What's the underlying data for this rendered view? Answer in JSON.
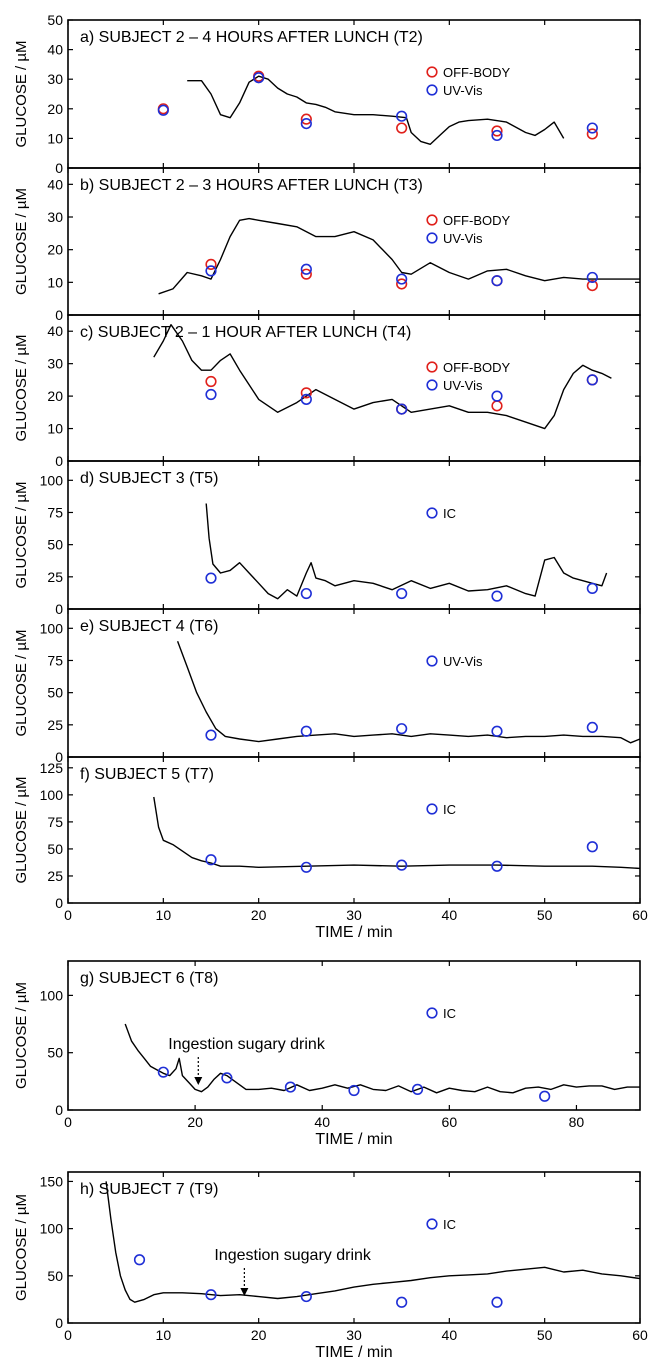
{
  "chart_data": [
    {
      "type": "scatter",
      "title": "a) SUBJECT 2 – 4 HOURS AFTER LUNCH (T2)",
      "ylabel": "GLUCOSE / µM",
      "xlim": [
        0,
        60
      ],
      "ylim": [
        0,
        50
      ],
      "yticks": [
        "0",
        "10",
        "20",
        "30",
        "40",
        "50"
      ],
      "legend": [
        "OFF-BODY",
        "UV-Vis"
      ],
      "legend_position": "top-right",
      "series": [
        {
          "name": "OFF-BODY",
          "marker": "circle",
          "color": "#e0201b",
          "x": [
            10,
            20,
            25,
            35,
            45,
            55
          ],
          "y": [
            20,
            31,
            16.5,
            13.5,
            12.5,
            11.5
          ]
        },
        {
          "name": "UV-Vis",
          "marker": "circle",
          "color": "#1f2fd6",
          "x": [
            10,
            20,
            25,
            35,
            45,
            55
          ],
          "y": [
            19.5,
            30.5,
            15,
            17.5,
            11,
            13.5
          ]
        },
        {
          "kind": "line",
          "x": [
            12.5,
            14,
            15,
            16,
            17,
            18,
            19,
            20,
            21,
            22,
            23,
            24,
            25,
            26,
            27,
            28,
            30,
            32,
            34,
            35.5,
            36,
            37,
            38,
            39,
            40,
            41,
            42,
            44,
            46,
            48,
            49,
            50,
            51,
            52
          ],
          "y": [
            29.5,
            29.5,
            25,
            18,
            17,
            22,
            29,
            31,
            30,
            27,
            25,
            24,
            22,
            21.5,
            20.5,
            19,
            18,
            18,
            17.5,
            17,
            12,
            9,
            8,
            11,
            14,
            15.5,
            16,
            16.5,
            15.5,
            12,
            11,
            13,
            15.5,
            10
          ]
        }
      ]
    },
    {
      "type": "scatter",
      "title": "b) SUBJECT 2 – 3 HOURS AFTER LUNCH (T3)",
      "ylabel": "GLUCOSE / µM",
      "xlim": [
        0,
        60
      ],
      "ylim": [
        0,
        45
      ],
      "yticks": [
        "0",
        "10",
        "20",
        "30",
        "40"
      ],
      "legend": [
        "OFF-BODY",
        "UV-Vis"
      ],
      "legend_position": "top-right",
      "series": [
        {
          "name": "OFF-BODY",
          "marker": "circle",
          "color": "#e0201b",
          "x": [
            15,
            25,
            35,
            45,
            55
          ],
          "y": [
            15.5,
            12.5,
            9.5,
            10.5,
            9
          ]
        },
        {
          "name": "UV-Vis",
          "marker": "circle",
          "color": "#1f2fd6",
          "x": [
            15,
            25,
            35,
            45,
            55
          ],
          "y": [
            13.5,
            14,
            11,
            10.5,
            11.5
          ]
        },
        {
          "kind": "line",
          "x": [
            9.5,
            11,
            12.5,
            14,
            15,
            16,
            17,
            18,
            19,
            20,
            22,
            24,
            26,
            28,
            30,
            32,
            34,
            35,
            36,
            38,
            40,
            42,
            44,
            46,
            48,
            50,
            52,
            54,
            56,
            58,
            60
          ],
          "y": [
            6.5,
            8,
            13,
            12,
            11,
            17,
            24,
            29,
            29.5,
            29,
            28,
            27,
            24,
            24,
            25.5,
            23,
            17,
            13,
            12.5,
            16,
            13,
            11,
            13.5,
            14,
            12,
            10.5,
            11.5,
            11,
            11,
            11,
            11
          ]
        }
      ]
    },
    {
      "type": "scatter",
      "title": "c) SUBJECT 2 – 1 HOUR AFTER LUNCH (T4)",
      "ylabel": "GLUCOSE / µM",
      "xlim": [
        0,
        60
      ],
      "ylim": [
        0,
        45
      ],
      "yticks": [
        "0",
        "10",
        "20",
        "30",
        "40"
      ],
      "legend": [
        "OFF-BODY",
        "UV-Vis"
      ],
      "legend_position": "top-right",
      "series": [
        {
          "name": "OFF-BODY",
          "marker": "circle",
          "color": "#e0201b",
          "x": [
            15,
            25,
            35,
            45,
            55
          ],
          "y": [
            24.5,
            21,
            16,
            17,
            25
          ]
        },
        {
          "name": "UV-Vis",
          "marker": "circle",
          "color": "#1f2fd6",
          "x": [
            15,
            25,
            35,
            45,
            55
          ],
          "y": [
            20.5,
            19,
            16,
            20,
            25
          ]
        },
        {
          "kind": "line",
          "x": [
            9,
            10,
            10.8,
            12,
            13,
            14,
            15,
            16,
            17,
            18,
            20,
            22,
            24,
            26,
            28,
            30,
            32,
            34,
            36,
            38,
            40,
            42,
            44,
            46,
            48,
            50,
            51,
            52,
            53,
            54,
            55,
            56,
            57
          ],
          "y": [
            32,
            37,
            42,
            37,
            31,
            28,
            28,
            31,
            33,
            28,
            19,
            15,
            18,
            22,
            19,
            16,
            18,
            19,
            15,
            16,
            17,
            15,
            15,
            14,
            12,
            10,
            14,
            22,
            27,
            29.5,
            28,
            27,
            25.5
          ]
        }
      ]
    },
    {
      "type": "scatter",
      "title": "d) SUBJECT 3 (T5)",
      "ylabel": "GLUCOSE / µM",
      "xlim": [
        0,
        60
      ],
      "ylim": [
        0,
        115
      ],
      "yticks": [
        "0",
        "25",
        "50",
        "75",
        "100"
      ],
      "legend": [
        "IC"
      ],
      "legend_position": "top-right",
      "series": [
        {
          "name": "IC",
          "marker": "circle",
          "color": "#1f2fd6",
          "x": [
            15,
            25,
            35,
            45,
            55
          ],
          "y": [
            24,
            12,
            12,
            10,
            16
          ]
        },
        {
          "kind": "line",
          "x": [
            14.5,
            14.8,
            15.2,
            16,
            17,
            18,
            19,
            20,
            21,
            22,
            23,
            24,
            25,
            25.5,
            26,
            27,
            28,
            30,
            32,
            34,
            36,
            38,
            40,
            42,
            44,
            46,
            48,
            49,
            50,
            51,
            52,
            53,
            54,
            55,
            56,
            56.5
          ],
          "y": [
            82,
            55,
            35,
            28,
            30,
            36,
            28,
            20,
            12,
            8,
            15,
            10,
            28,
            36,
            24,
            22,
            18,
            22,
            20,
            15,
            22,
            16,
            20,
            14,
            15,
            18,
            12,
            10,
            38,
            40,
            28,
            24,
            22,
            20,
            18,
            28
          ]
        }
      ]
    },
    {
      "type": "scatter",
      "title": "e) SUBJECT 4 (T6)",
      "ylabel": "GLUCOSE / µM",
      "xlim": [
        0,
        60
      ],
      "ylim": [
        0,
        115
      ],
      "yticks": [
        "0",
        "25",
        "50",
        "75",
        "100"
      ],
      "legend": [
        "UV-Vis"
      ],
      "legend_position": "top-right",
      "series": [
        {
          "name": "UV-Vis",
          "marker": "circle",
          "color": "#1f2fd6",
          "x": [
            15,
            25,
            35,
            45,
            55
          ],
          "y": [
            17,
            20,
            22,
            20,
            23
          ]
        },
        {
          "kind": "line",
          "x": [
            11.5,
            12.5,
            13.5,
            14.5,
            15.5,
            16.5,
            18,
            20,
            22,
            24,
            26,
            28,
            30,
            32,
            34,
            36,
            38,
            40,
            42,
            44,
            46,
            48,
            50,
            52,
            54,
            56,
            58,
            59,
            60
          ],
          "y": [
            90,
            70,
            50,
            35,
            22,
            16,
            14,
            12,
            14,
            16,
            17,
            18,
            16,
            17,
            18,
            16,
            18,
            17,
            16,
            17,
            15,
            16,
            16,
            17,
            16,
            16,
            15,
            11,
            14
          ]
        }
      ]
    },
    {
      "type": "scatter",
      "title": "f) SUBJECT 5 (T7)",
      "ylabel": "GLUCOSE / µM",
      "xlim": [
        0,
        60
      ],
      "ylim": [
        0,
        135
      ],
      "yticks": [
        "0",
        "25",
        "50",
        "75",
        "100",
        "125"
      ],
      "legend": [
        "IC"
      ],
      "legend_position": "top-right",
      "series": [
        {
          "name": "IC",
          "marker": "circle",
          "color": "#1f2fd6",
          "x": [
            15,
            25,
            35,
            45,
            55
          ],
          "y": [
            40,
            33,
            35,
            34,
            52
          ]
        },
        {
          "kind": "line",
          "x": [
            9,
            9.5,
            10,
            11,
            12,
            13,
            14,
            15,
            16,
            18,
            20,
            25,
            30,
            35,
            40,
            45,
            50,
            55,
            58,
            60
          ],
          "y": [
            98,
            70,
            58,
            54,
            48,
            42,
            39,
            37,
            34,
            34,
            33,
            34,
            35,
            34,
            35,
            35,
            34,
            34,
            33,
            32
          ]
        }
      ]
    },
    {
      "type": "scatter",
      "title": "g) SUBJECT 6 (T8)",
      "ylabel": "GLUCOSE / µM",
      "xlabel": "TIME / min",
      "xlim": [
        0,
        90
      ],
      "ylim": [
        0,
        130
      ],
      "xticks": [
        "0",
        "20",
        "40",
        "60",
        "80"
      ],
      "yticks": [
        "0",
        "50",
        "100"
      ],
      "legend": [
        "IC"
      ],
      "legend_position": "top-right",
      "annotations": [
        {
          "text": "Ingestion sugary drink",
          "x": 20.5
        }
      ],
      "series": [
        {
          "name": "IC",
          "marker": "circle",
          "color": "#1f2fd6",
          "x": [
            15,
            25,
            35,
            45,
            55,
            75
          ],
          "y": [
            33,
            28,
            20,
            17,
            18,
            12
          ]
        },
        {
          "kind": "line",
          "x": [
            9,
            10,
            11,
            12,
            13,
            14,
            15,
            16,
            17,
            17.5,
            18,
            19,
            20,
            21,
            22,
            23,
            24,
            25,
            26,
            28,
            30,
            32,
            34,
            36,
            38,
            40,
            42,
            44,
            46,
            48,
            50,
            52,
            54,
            56,
            58,
            60,
            62,
            64,
            66,
            68,
            70,
            72,
            74,
            76,
            78,
            80,
            82,
            84,
            86,
            88,
            90
          ],
          "y": [
            75,
            60,
            52,
            45,
            38,
            35,
            32,
            30,
            36,
            45,
            30,
            24,
            18,
            16,
            20,
            27,
            32,
            30,
            26,
            18,
            18,
            19,
            17,
            22,
            17,
            19,
            22,
            19,
            22,
            18,
            17,
            21,
            16,
            20,
            15,
            19,
            17,
            16,
            20,
            16,
            15,
            19,
            20,
            18,
            22,
            20,
            21,
            21,
            18,
            20,
            20
          ]
        }
      ]
    },
    {
      "type": "scatter",
      "title": "h) SUBJECT 7 (T9)",
      "ylabel": "GLUCOSE / µM",
      "xlabel": "TIME / min",
      "xlim": [
        0,
        60
      ],
      "ylim": [
        0,
        160
      ],
      "xticks": [
        "0",
        "10",
        "20",
        "30",
        "40",
        "50",
        "60"
      ],
      "yticks": [
        "0",
        "50",
        "100",
        "150"
      ],
      "legend": [
        "IC"
      ],
      "legend_position": "top-right",
      "annotations": [
        {
          "text": "Ingestion sugary drink",
          "x": 18.5
        }
      ],
      "series": [
        {
          "name": "IC",
          "marker": "circle",
          "color": "#1f2fd6",
          "x": [
            7.5,
            15,
            25,
            35,
            45
          ],
          "y": [
            67,
            30,
            28,
            22,
            22
          ]
        },
        {
          "kind": "line",
          "x": [
            4,
            4.5,
            5,
            5.5,
            6,
            6.5,
            7,
            8,
            9,
            10,
            12,
            14,
            16,
            18,
            20,
            22,
            24,
            26,
            28,
            30,
            32,
            34,
            36,
            38,
            40,
            42,
            44,
            46,
            48,
            50,
            52,
            54,
            56,
            58,
            60
          ],
          "y": [
            150,
            110,
            75,
            50,
            35,
            25,
            22,
            25,
            30,
            32,
            32,
            31,
            29,
            30,
            28,
            26,
            28,
            31,
            34,
            38,
            41,
            43,
            45,
            48,
            50,
            51,
            52,
            55,
            57,
            59,
            54,
            56,
            52,
            50,
            47
          ]
        }
      ]
    }
  ],
  "shared_xaxis": {
    "xlabel": "TIME / min",
    "xticks": [
      "0",
      "10",
      "20",
      "30",
      "40",
      "50",
      "60"
    ]
  },
  "colors": {
    "offbody": "#e0201b",
    "uvvis": "#1f2fd6",
    "line": "#000000"
  }
}
